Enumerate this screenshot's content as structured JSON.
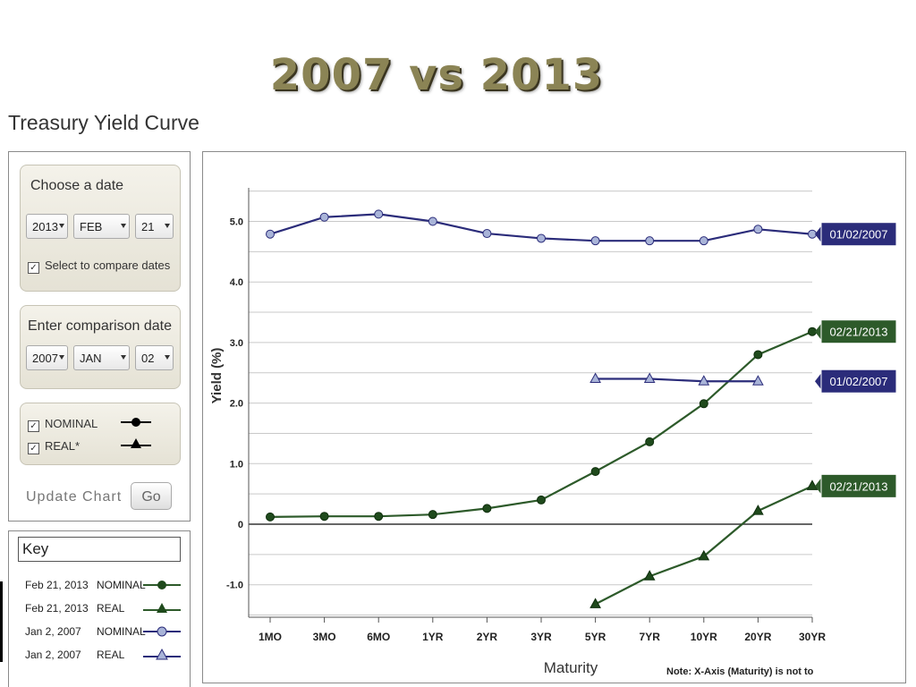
{
  "slide_title": "2007 vs 2013",
  "app_title": "Treasury Yield Curve",
  "date_box": {
    "title": "Choose a date",
    "year": "2013",
    "month": "FEB",
    "day": "21",
    "compare_label": "Select to compare dates",
    "compare_checked": true
  },
  "comparison_box": {
    "title": "Enter comparison date",
    "year": "2007",
    "month": "JAN",
    "day": "02"
  },
  "types_box": {
    "nominal_label": "NOMINAL",
    "real_label": "REAL*"
  },
  "update_label": "Update Chart",
  "go_label": "Go",
  "key": {
    "title": "Key",
    "rows": [
      {
        "date": "Feb 21, 2013",
        "type": "NOMINAL"
      },
      {
        "date": "Feb 21, 2013",
        "type": "REAL"
      },
      {
        "date": "Jan 2, 2007",
        "type": "NOMINAL"
      },
      {
        "date": "Jan 2, 2007",
        "type": "REAL"
      }
    ]
  },
  "colors": {
    "series_2007": "#2b2c7a",
    "series_2007_marker": "#a9b4d8",
    "series_2013": "#2d5a2a",
    "series_2013_marker": "#1f4a1c"
  },
  "chart_data": {
    "type": "line",
    "categories": [
      "1MO",
      "3MO",
      "6MO",
      "1YR",
      "2YR",
      "3YR",
      "5YR",
      "7YR",
      "10YR",
      "20YR",
      "30YR"
    ],
    "xlabel": "Maturity",
    "ylabel": "Yield (%)",
    "ylim": [
      -1.5,
      5.5
    ],
    "y_ticks": [
      -1.0,
      0,
      1.0,
      2.0,
      3.0,
      4.0,
      5.0
    ],
    "y_tick_labels": [
      "-1.0",
      "0",
      "1.0",
      "2.0",
      "3.0",
      "4.0",
      "5.0"
    ],
    "grid": true,
    "note": "Note: X-Axis (Maturity) is not to",
    "series": [
      {
        "name": "01/02/2007",
        "kind": "nominal",
        "marker": "circle-open",
        "values": [
          4.79,
          5.07,
          5.12,
          5.0,
          4.8,
          4.72,
          4.68,
          4.68,
          4.68,
          4.87,
          4.79
        ]
      },
      {
        "name": "02/21/2013",
        "kind": "nominal",
        "marker": "circle-filled",
        "values": [
          0.12,
          0.13,
          0.13,
          0.16,
          0.26,
          0.4,
          0.87,
          1.36,
          1.99,
          2.8,
          3.18
        ]
      },
      {
        "name": "01/02/2007",
        "kind": "real",
        "marker": "triangle-open",
        "values": [
          null,
          null,
          null,
          null,
          null,
          null,
          2.4,
          2.4,
          2.36,
          2.36,
          null
        ]
      },
      {
        "name": "02/21/2013",
        "kind": "real",
        "marker": "triangle-filled",
        "values": [
          null,
          null,
          null,
          null,
          null,
          null,
          -1.32,
          -0.86,
          -0.53,
          0.22,
          0.63
        ]
      }
    ]
  }
}
